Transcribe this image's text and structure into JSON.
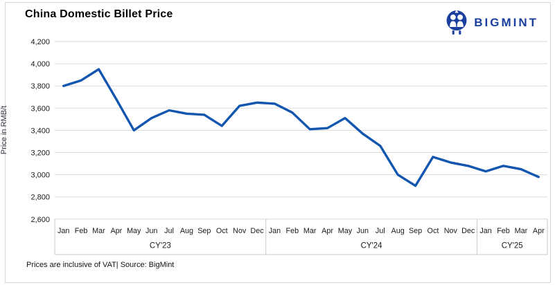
{
  "header": {
    "title": "China Domestic Billet Price",
    "logo": {
      "brand": "BIGMINT",
      "icon": "bigmint-people-icon",
      "color": "#1b3f9e"
    }
  },
  "footer": {
    "note": "Prices are inclusive of VAT| Source: BigMint"
  },
  "colors": {
    "line": "#1256b0",
    "grid": "#dadada",
    "band_border": "#c9c9c9",
    "text": "#1a1a1a",
    "logo_blue": "#1b3f9e"
  },
  "chart_data": {
    "type": "line",
    "title": "China Domestic Billet Price",
    "xlabel": "",
    "ylabel": "Price in RMB/t",
    "ylim": [
      2600,
      4200
    ],
    "yticks": [
      4200,
      4000,
      3800,
      3600,
      3400,
      3200,
      3000,
      2800,
      2600
    ],
    "grid": "horizontal",
    "legend": "none",
    "line_color": "#1256b0",
    "year_groups": [
      {
        "label": "CY'23",
        "months": [
          "Jan",
          "Feb",
          "Mar",
          "Apr",
          "May",
          "Jun",
          "Jul",
          "Aug",
          "Sep",
          "Oct",
          "Nov",
          "Dec"
        ]
      },
      {
        "label": "CY'24",
        "months": [
          "Jan",
          "Feb",
          "Mar",
          "Apr",
          "May",
          "Jun",
          "Jul",
          "Aug",
          "Sep",
          "Oct",
          "Nov",
          "Dec"
        ]
      },
      {
        "label": "CY'25",
        "months": [
          "Jan",
          "Feb",
          "Mar",
          "Apr"
        ]
      }
    ],
    "series": [
      {
        "name": "China Domestic Billet Price (RMB/t)",
        "values": [
          3800,
          3850,
          3950,
          3680,
          3400,
          3510,
          3580,
          3550,
          3540,
          3440,
          3620,
          3650,
          3640,
          3560,
          3410,
          3420,
          3510,
          3370,
          3260,
          3000,
          2900,
          3160,
          3110,
          3080,
          3030,
          3080,
          3050,
          2980
        ]
      }
    ]
  }
}
